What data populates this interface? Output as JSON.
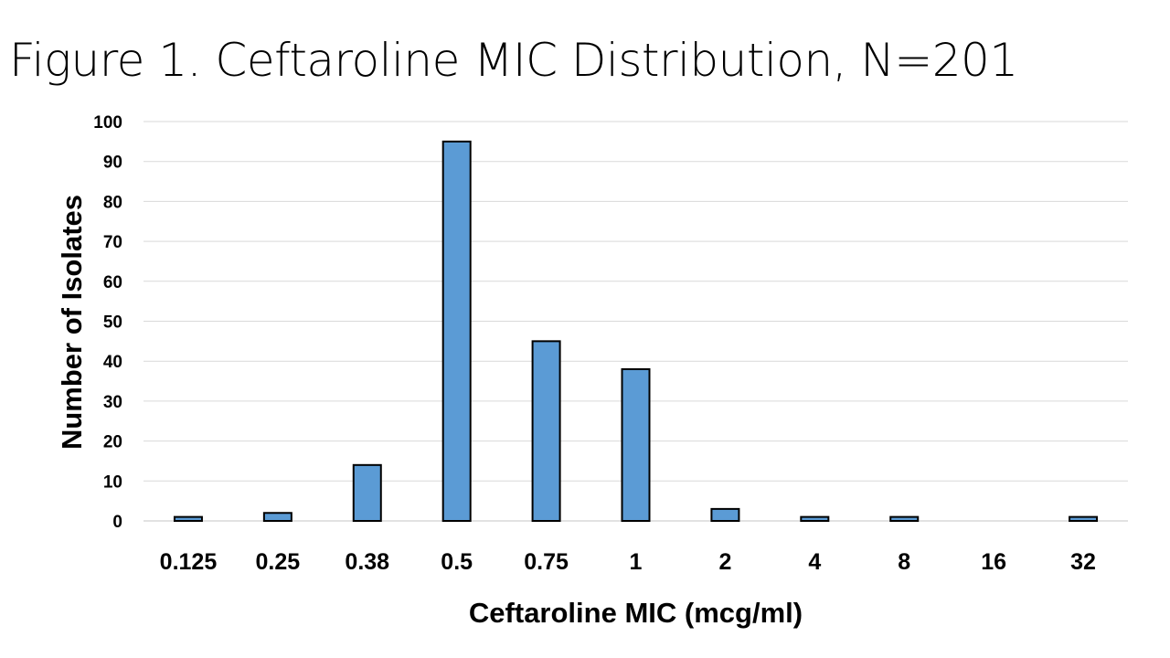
{
  "title": "Figure 1.  Ceftaroline MIC Distribution, N=201",
  "chart_data": {
    "type": "bar",
    "title": "Figure 1.  Ceftaroline MIC Distribution, N=201",
    "xlabel": "Ceftaroline MIC (mcg/ml)",
    "ylabel": "Number of Isolates",
    "categories": [
      "0.125",
      "0.25",
      "0.38",
      "0.5",
      "0.75",
      "1",
      "2",
      "4",
      "8",
      "16",
      "32"
    ],
    "values": [
      1,
      2,
      14,
      95,
      45,
      38,
      3,
      1,
      1,
      0,
      1
    ],
    "ylim": [
      0,
      100
    ],
    "yticks": [
      0,
      10,
      20,
      30,
      40,
      50,
      60,
      70,
      80,
      90,
      100
    ],
    "grid": true,
    "legend": "none",
    "bar_color": "#5b9bd5",
    "bar_edge_color": "#000000"
  }
}
